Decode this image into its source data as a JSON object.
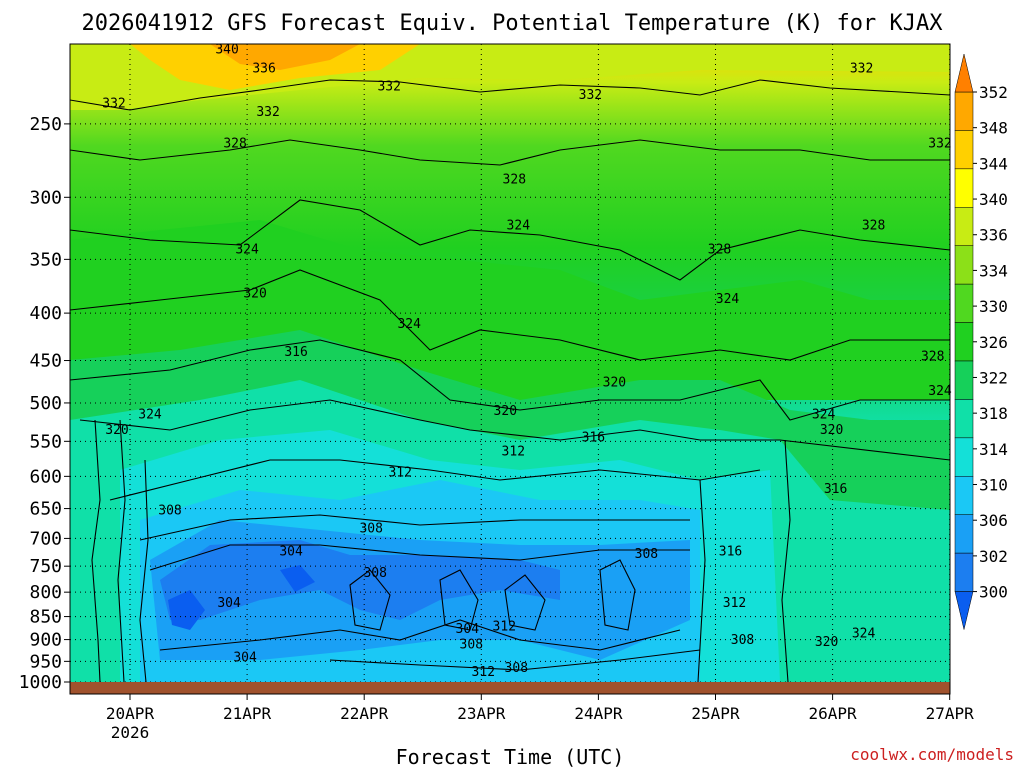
{
  "chart_data": {
    "type": "heatmap",
    "title": "2026041912 GFS Forecast Equiv. Potential Temperature (K) for KJAX",
    "xlabel": "Forecast Time (UTC)",
    "ylabel": "",
    "x_ticks": [
      "20APR",
      "21APR",
      "22APR",
      "23APR",
      "24APR",
      "25APR",
      "26APR",
      "27APR"
    ],
    "x_tick_sub": "2026",
    "y_ticks": [
      250,
      300,
      350,
      400,
      450,
      500,
      550,
      600,
      650,
      700,
      750,
      800,
      850,
      900,
      950,
      1000
    ],
    "y_scale": "log-pressure",
    "grid": true,
    "colorbar": {
      "levels": [
        300,
        302,
        306,
        310,
        314,
        318,
        322,
        326,
        330,
        334,
        336,
        340,
        344,
        348,
        352
      ],
      "colors": [
        "#0a5ef0",
        "#1c7ef0",
        "#1aa0f5",
        "#1bc8f5",
        "#14e0d8",
        "#10e0a8",
        "#16d05a",
        "#20d020",
        "#50d820",
        "#8ce018",
        "#c8ec14",
        "#ffff00",
        "#ffd000",
        "#ffa800",
        "#ff8000"
      ],
      "labels": [
        352,
        348,
        344,
        340,
        336,
        334,
        330,
        326,
        322,
        318,
        314,
        310,
        306,
        302,
        300
      ]
    },
    "contour_labels": [
      {
        "text": "340",
        "x": "21APR",
        "p": 210
      },
      {
        "text": "336",
        "x": "21APR",
        "p": 220
      },
      {
        "text": "332",
        "x": "20APR",
        "p": 240
      },
      {
        "text": "332",
        "x": "21APR",
        "p": 245
      },
      {
        "text": "328",
        "x": "21APR",
        "p": 265
      },
      {
        "text": "332",
        "x": "22APR",
        "p": 230
      },
      {
        "text": "332",
        "x": "24APR",
        "p": 235
      },
      {
        "text": "332",
        "x": "26APR",
        "p": 220
      },
      {
        "text": "332",
        "x": "27APR",
        "p": 265
      },
      {
        "text": "328",
        "x": "23APR",
        "p": 290
      },
      {
        "text": "324",
        "x": "21APR",
        "p": 345
      },
      {
        "text": "324",
        "x": "23APR",
        "p": 325
      },
      {
        "text": "328",
        "x": "25APR",
        "p": 345
      },
      {
        "text": "328",
        "x": "26APR",
        "p": 325
      },
      {
        "text": "320",
        "x": "21APR",
        "p": 385
      },
      {
        "text": "324",
        "x": "22APR",
        "p": 415
      },
      {
        "text": "324",
        "x": "25APR",
        "p": 390
      },
      {
        "text": "316",
        "x": "21APR",
        "p": 445
      },
      {
        "text": "320",
        "x": "24APR",
        "p": 480
      },
      {
        "text": "328",
        "x": "27APR",
        "p": 450
      },
      {
        "text": "324",
        "x": "20APR",
        "p": 520
      },
      {
        "text": "320",
        "x": "20APR",
        "p": 540
      },
      {
        "text": "320",
        "x": "23APR",
        "p": 515
      },
      {
        "text": "324",
        "x": "26APR",
        "p": 520
      },
      {
        "text": "324",
        "x": "27APR",
        "p": 490
      },
      {
        "text": "316",
        "x": "24APR",
        "p": 550
      },
      {
        "text": "312",
        "x": "23APR",
        "p": 570
      },
      {
        "text": "320",
        "x": "26APR",
        "p": 540
      },
      {
        "text": "312",
        "x": "22APR",
        "p": 600
      },
      {
        "text": "316",
        "x": "26APR",
        "p": 625
      },
      {
        "text": "308",
        "x": "20APR",
        "p": 660
      },
      {
        "text": "308",
        "x": "22APR",
        "p": 690
      },
      {
        "text": "304",
        "x": "21APR",
        "p": 730
      },
      {
        "text": "308",
        "x": "22APR",
        "p": 770
      },
      {
        "text": "308",
        "x": "24APR",
        "p": 735
      },
      {
        "text": "316",
        "x": "25APR",
        "p": 730
      },
      {
        "text": "304",
        "x": "21APR",
        "p": 830
      },
      {
        "text": "312",
        "x": "25APR",
        "p": 830
      },
      {
        "text": "304",
        "x": "23APR",
        "p": 885
      },
      {
        "text": "312",
        "x": "23APR",
        "p": 880
      },
      {
        "text": "308",
        "x": "23APR",
        "p": 920
      },
      {
        "text": "308",
        "x": "25APR",
        "p": 910
      },
      {
        "text": "320",
        "x": "26APR",
        "p": 915
      },
      {
        "text": "324",
        "x": "26APR",
        "p": 895
      },
      {
        "text": "304",
        "x": "21APR",
        "p": 950
      },
      {
        "text": "308",
        "x": "23APR",
        "p": 975
      },
      {
        "text": "312",
        "x": "23APR",
        "p": 985
      }
    ]
  },
  "credit": "coolwx.com/models"
}
